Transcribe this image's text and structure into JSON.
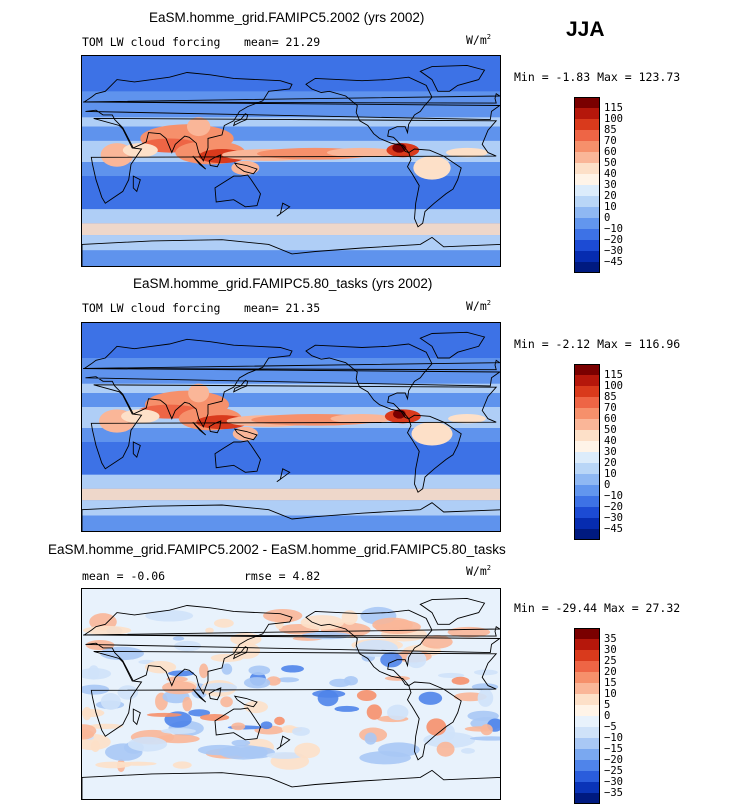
{
  "season": "JJA",
  "panels": [
    {
      "id": "p1",
      "title": "EaSM.homme_grid.FAMIPC5.2002 (yrs 2002)",
      "left_label": "TOM LW cloud forcing",
      "stat_text": "mean=  21.29",
      "units_main": "W/m",
      "units_exp": "2",
      "minmax": "Min =  -1.83 Max = 123.73",
      "colorbar": {
        "ticks": [
          "115",
          "100",
          "85",
          "70",
          "60",
          "50",
          "40",
          "30",
          "20",
          "10",
          "0",
          "−10",
          "−20",
          "−30",
          "−45"
        ],
        "colors": [
          "#7a0000",
          "#b5170b",
          "#d93a1c",
          "#ee6545",
          "#f6906b",
          "#fab698",
          "#fde0c8",
          "#fff4e8",
          "#dcecfb",
          "#b9d6f7",
          "#8fb8f3",
          "#6296ee",
          "#3d72e6",
          "#1c4bd4",
          "#062cb0",
          "#001a80"
        ]
      }
    },
    {
      "id": "p2",
      "title": "EaSM.homme_grid.FAMIPC5.80_tasks (yrs 2002)",
      "left_label": "TOM LW cloud forcing",
      "stat_text": "mean=  21.35",
      "units_main": "W/m",
      "units_exp": "2",
      "minmax": "Min =  -2.12 Max = 116.96",
      "colorbar": {
        "ticks": [
          "115",
          "100",
          "85",
          "70",
          "60",
          "50",
          "40",
          "30",
          "20",
          "10",
          "0",
          "−10",
          "−20",
          "−30",
          "−45"
        ],
        "colors": [
          "#7a0000",
          "#b5170b",
          "#d93a1c",
          "#ee6545",
          "#f6906b",
          "#fab698",
          "#fde0c8",
          "#fff4e8",
          "#dcecfb",
          "#b9d6f7",
          "#8fb8f3",
          "#6296ee",
          "#3d72e6",
          "#1c4bd4",
          "#062cb0",
          "#001a80"
        ]
      }
    },
    {
      "id": "p3",
      "title": "EaSM.homme_grid.FAMIPC5.2002 - EaSM.homme_grid.FAMIPC5.80_tasks",
      "left_label": "mean =  -0.06",
      "stat_text": "rmse =   4.82",
      "units_main": "W/m",
      "units_exp": "2",
      "minmax": "Min = -29.44 Max =  27.32",
      "colorbar": {
        "ticks": [
          "35",
          "30",
          "25",
          "20",
          "15",
          "10",
          "5",
          "0",
          "−5",
          "−10",
          "−15",
          "−20",
          "−25",
          "−30",
          "−35"
        ],
        "colors": [
          "#7a0000",
          "#b5170b",
          "#d93a1c",
          "#ee6545",
          "#f6906b",
          "#fab698",
          "#fde0c8",
          "#fff4e8",
          "#e8f2fc",
          "#cfe2f9",
          "#a9c8f5",
          "#7aa8f0",
          "#4f84ea",
          "#2a5ddc",
          "#0a34b8",
          "#001a80"
        ]
      }
    }
  ]
}
